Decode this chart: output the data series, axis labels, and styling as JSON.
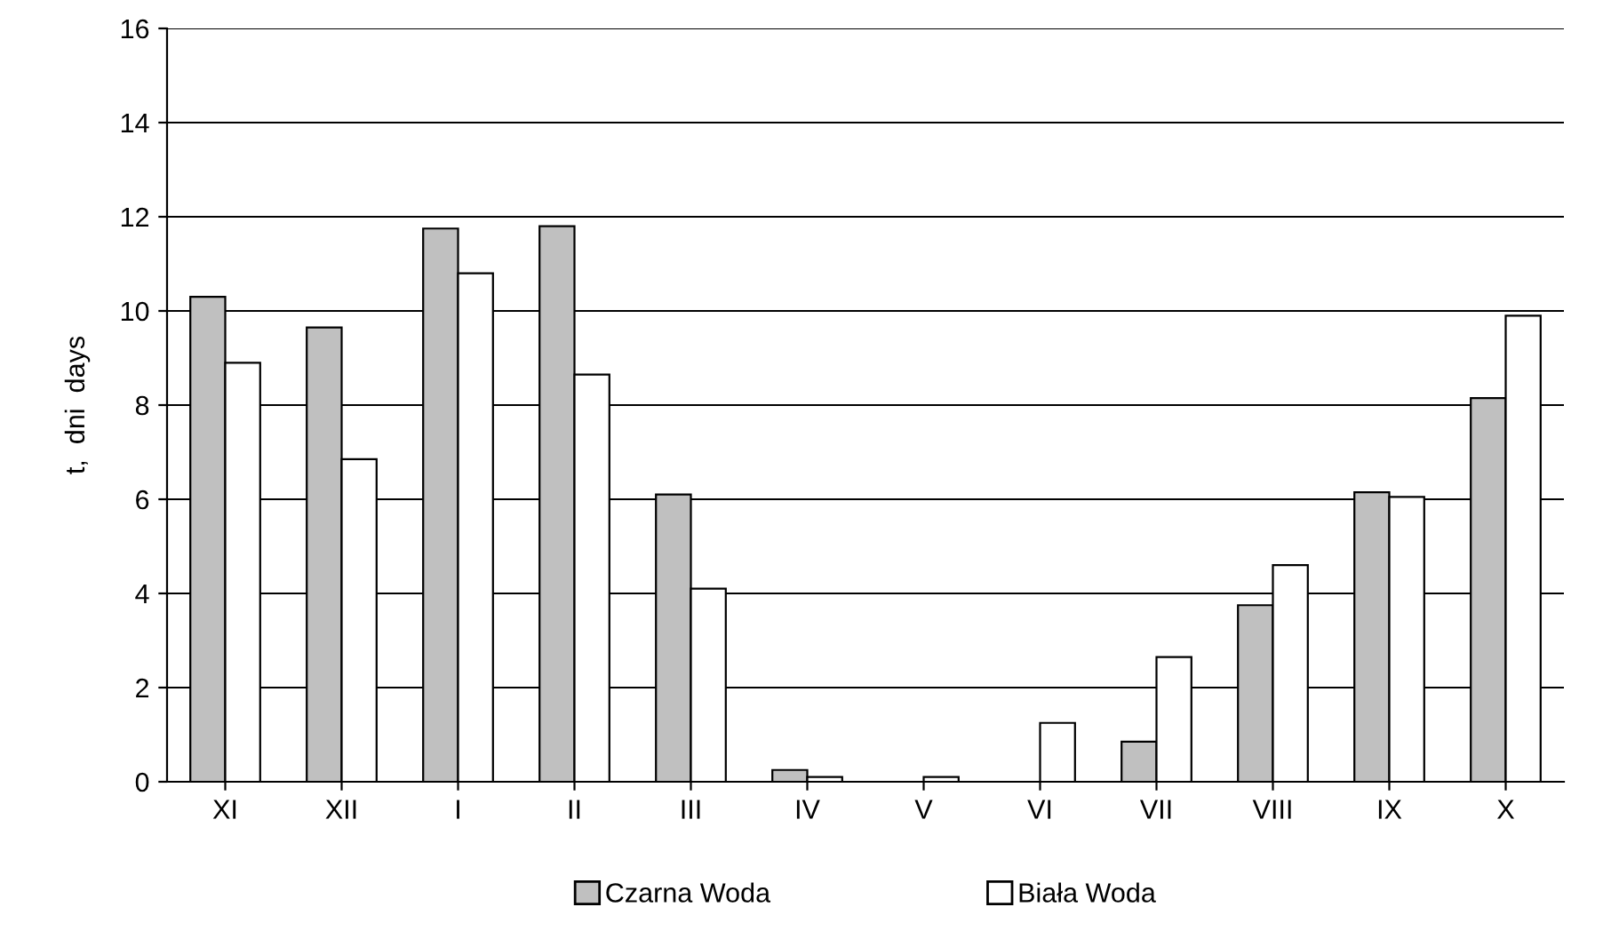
{
  "chart_data": {
    "type": "bar",
    "categories": [
      "XI",
      "XII",
      "I",
      "II",
      "III",
      "IV",
      "V",
      "VI",
      "VII",
      "VIII",
      "IX",
      "X"
    ],
    "ylabel": "t,  dni  days",
    "series": [
      {
        "name": "Czarna Woda",
        "color": "#c0c0c0",
        "values": [
          10.3,
          9.65,
          11.75,
          11.8,
          6.1,
          0.25,
          null,
          null,
          0.85,
          3.75,
          6.15,
          8.15
        ]
      },
      {
        "name": "Biała Woda",
        "color": "#ffffff",
        "values": [
          8.9,
          6.85,
          10.8,
          8.65,
          4.1,
          0.1,
          0.1,
          1.25,
          2.65,
          4.6,
          6.05,
          9.9
        ]
      }
    ],
    "ylim": [
      0,
      16
    ],
    "yticks": [
      0,
      2,
      4,
      6,
      8,
      10,
      12,
      14,
      16
    ],
    "grid": "y",
    "legend": "bottom"
  }
}
